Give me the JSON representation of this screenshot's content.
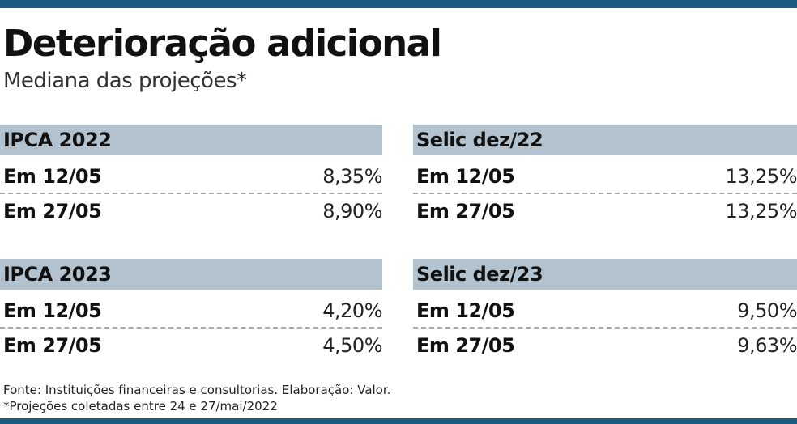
{
  "header": {
    "title": "Deterioração adicional",
    "subtitle": "Mediana das projeções*"
  },
  "tables": [
    {
      "title": "IPCA 2022",
      "rows": [
        {
          "label": "Em 12/05",
          "value": "8,35%"
        },
        {
          "label": "Em 27/05",
          "value": "8,90%"
        }
      ]
    },
    {
      "title": "Selic dez/22",
      "rows": [
        {
          "label": "Em 12/05",
          "value": "13,25%"
        },
        {
          "label": "Em 27/05",
          "value": "13,25%"
        }
      ]
    },
    {
      "title": "IPCA 2023",
      "rows": [
        {
          "label": "Em 12/05",
          "value": "4,20%"
        },
        {
          "label": "Em 27/05",
          "value": "4,50%"
        }
      ]
    },
    {
      "title": "Selic dez/23",
      "rows": [
        {
          "label": "Em 12/05",
          "value": "9,50%"
        },
        {
          "label": "Em 27/05",
          "value": "9,63%"
        }
      ]
    }
  ],
  "footer": {
    "source": "Fonte: Instituições financeiras e consultorias. Elaboração: Valor.",
    "note": "*Projeções coletadas entre 24 e 27/mai/2022"
  },
  "colors": {
    "accent_rule": "#1f5a80",
    "table_header_bg": "#b2c3cf",
    "row_divider": "#a9a9a9"
  }
}
